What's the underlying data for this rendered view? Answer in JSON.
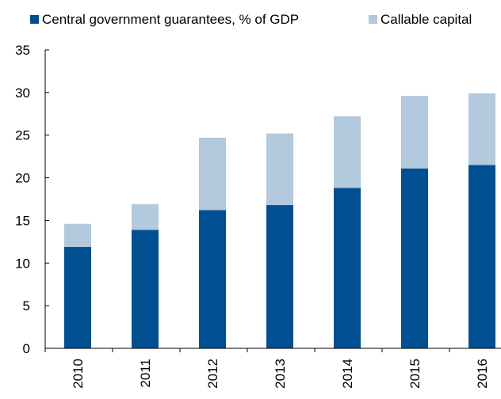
{
  "chart_data": {
    "type": "bar",
    "stacked": true,
    "title": "",
    "xlabel": "",
    "ylabel": "",
    "categories": [
      "2010",
      "2011",
      "2012",
      "2013",
      "2014",
      "2015",
      "2016"
    ],
    "series": [
      {
        "name": "Central government guarantees, % of GDP",
        "color": "#004f93",
        "values": [
          11.9,
          13.9,
          16.2,
          16.8,
          18.8,
          21.1,
          21.5
        ]
      },
      {
        "name": "Callable capital",
        "color": "#b3c9de",
        "values": [
          2.7,
          3.0,
          8.5,
          8.4,
          8.4,
          8.5,
          8.4
        ]
      }
    ],
    "ylim": [
      0,
      35
    ],
    "yticks": [
      0,
      5,
      10,
      15,
      20,
      25,
      30,
      35
    ],
    "grid": false,
    "legend_position": "top"
  }
}
